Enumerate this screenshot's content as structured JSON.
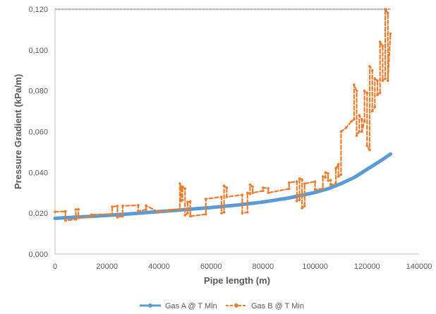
{
  "chart_data": {
    "type": "line",
    "xlabel": "Pipe length (m)",
    "ylabel": "Pressure Gradient (kPa/m)",
    "xlim": [
      0,
      140000
    ],
    "ylim": [
      0,
      0.12
    ],
    "x_ticks": [
      0,
      20000,
      40000,
      60000,
      80000,
      100000,
      120000,
      140000
    ],
    "x_tick_labels": [
      "0",
      "20000",
      "40000",
      "60000",
      "80000",
      "100000",
      "120000",
      "140000"
    ],
    "y_ticks": [
      0,
      0.02,
      0.04,
      0.06,
      0.08,
      0.1,
      0.12
    ],
    "y_tick_labels": [
      "0,000",
      "0,020",
      "0,040",
      "0,060",
      "0,080",
      "0,100",
      "0,120"
    ],
    "grid": false,
    "legend_position": "bottom",
    "series": [
      {
        "name": "Gas A @ T Min",
        "color": "#5B9BD5",
        "line_style": "solid",
        "x": [
          0,
          10000,
          20000,
          30000,
          40000,
          50000,
          60000,
          70000,
          80000,
          90000,
          100000,
          105000,
          110000,
          115000,
          120000,
          125000,
          129000
        ],
        "y": [
          0.0175,
          0.0182,
          0.0189,
          0.0198,
          0.0208,
          0.0218,
          0.0228,
          0.024,
          0.0255,
          0.0275,
          0.0302,
          0.032,
          0.0345,
          0.0375,
          0.0415,
          0.0455,
          0.049
        ]
      },
      {
        "name": "Gas B @ T Min",
        "color": "#ED7D31",
        "line_style": "dashed",
        "x": [
          0,
          4000,
          4000,
          8000,
          8000,
          9000,
          9000,
          14000,
          14000,
          22000,
          22000,
          24000,
          24000,
          26000,
          26000,
          32000,
          32000,
          35000,
          35000,
          40000,
          44000,
          48000,
          48000,
          48500,
          48500,
          49000,
          49000,
          50000,
          50000,
          51000,
          51000,
          52000,
          52000,
          58000,
          58000,
          64000,
          64000,
          65000,
          65000,
          66000,
          66000,
          72000,
          72000,
          74000,
          74000,
          75000,
          75000,
          76000,
          76000,
          80000,
          80000,
          82000,
          82000,
          90000,
          90000,
          93000,
          93000,
          94000,
          94000,
          95000,
          95000,
          96000,
          96000,
          100000,
          100000,
          103000,
          103000,
          104000,
          104000,
          105000,
          105000,
          106000,
          106000,
          108000,
          108000,
          109000,
          109000,
          110000,
          110000,
          112000,
          114000,
          115000,
          115000,
          116000,
          116000,
          117000,
          117000,
          118000,
          118000,
          119000,
          119000,
          120000,
          120000,
          121000,
          121000,
          122000,
          122000,
          123000,
          123000,
          124000,
          124000,
          125000,
          125000,
          126000,
          126000,
          127000,
          127000,
          128000,
          128000,
          129000
        ],
        "y": [
          0.0207,
          0.0209,
          0.0164,
          0.017,
          0.0218,
          0.0219,
          0.0177,
          0.0182,
          0.0193,
          0.0196,
          0.0232,
          0.0235,
          0.018,
          0.0185,
          0.0236,
          0.0239,
          0.021,
          0.0218,
          0.0237,
          0.0205,
          0.0215,
          0.022,
          0.0345,
          0.033,
          0.026,
          0.0265,
          0.033,
          0.032,
          0.019,
          0.02,
          0.0255,
          0.0258,
          0.0185,
          0.0195,
          0.027,
          0.028,
          0.02,
          0.0205,
          0.0335,
          0.0325,
          0.028,
          0.029,
          0.02,
          0.0205,
          0.03,
          0.0295,
          0.034,
          0.033,
          0.03,
          0.031,
          0.0325,
          0.0322,
          0.03,
          0.032,
          0.035,
          0.0355,
          0.026,
          0.0265,
          0.037,
          0.0365,
          0.0225,
          0.0235,
          0.0345,
          0.0355,
          0.0315,
          0.032,
          0.038,
          0.0375,
          0.04,
          0.0395,
          0.036,
          0.0362,
          0.034,
          0.0345,
          0.042,
          0.044,
          0.038,
          0.039,
          0.06,
          0.062,
          0.065,
          0.066,
          0.083,
          0.08,
          0.058,
          0.06,
          0.068,
          0.066,
          0.06,
          0.065,
          0.08,
          0.079,
          0.053,
          0.051,
          0.092,
          0.09,
          0.07,
          0.072,
          0.086,
          0.085,
          0.078,
          0.079,
          0.104,
          0.102,
          0.085,
          0.086,
          0.12,
          0.118,
          0.085,
          0.108
        ]
      }
    ]
  }
}
